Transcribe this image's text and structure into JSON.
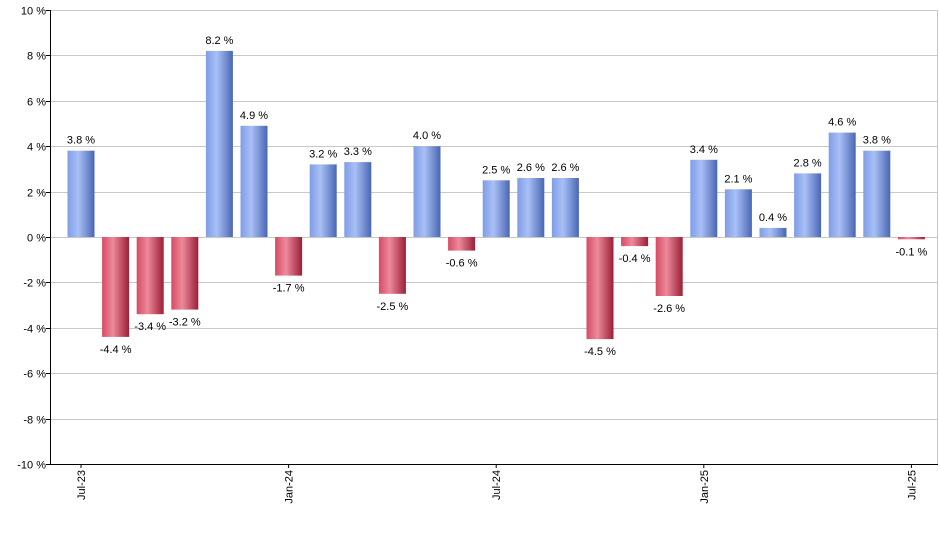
{
  "chart_data": {
    "type": "bar",
    "categories": [
      "2023-07",
      "2023-08",
      "2023-09",
      "2023-10",
      "2023-11",
      "2023-12",
      "2024-01",
      "2024-02",
      "2024-03",
      "2024-04",
      "2024-05",
      "2024-06",
      "2024-07",
      "2024-08",
      "2024-09",
      "2024-10",
      "2024-11",
      "2024-12",
      "2025-01",
      "2025-02",
      "2025-03",
      "2025-04",
      "2025-05",
      "2025-06",
      "2025-07"
    ],
    "values": [
      3.8,
      -4.4,
      -3.4,
      -3.2,
      8.2,
      4.9,
      -1.7,
      3.2,
      3.3,
      -2.5,
      4.0,
      -0.6,
      2.5,
      2.6,
      2.6,
      -4.5,
      -0.4,
      -2.6,
      3.4,
      2.1,
      0.4,
      2.8,
      4.6,
      3.8,
      -0.1
    ],
    "data_labels": [
      "3.8 %",
      "-4.4 %",
      "-3.4 %",
      "-3.2 %",
      "8.2 %",
      "4.9 %",
      "-1.7 %",
      "3.2 %",
      "3.3 %",
      "-2.5 %",
      "4.0 %",
      "-0.6 %",
      "2.5 %",
      "2.6 %",
      "2.6 %",
      "-4.5 %",
      "-0.4 %",
      "-2.6 %",
      "3.4 %",
      "2.1 %",
      "0.4 %",
      "2.8 %",
      "4.6 %",
      "3.8 %",
      "-0.1 %"
    ],
    "x_tick_labels": [
      {
        "label": "Jul-23",
        "index": 0
      },
      {
        "label": "Jan-24",
        "index": 6
      },
      {
        "label": "Jul-24",
        "index": 12
      },
      {
        "label": "Jan-25",
        "index": 18
      },
      {
        "label": "Jul-25",
        "index": 24
      }
    ],
    "y_ticks": [
      10,
      8,
      6,
      4,
      2,
      0,
      -2,
      -4,
      -6,
      -8,
      -10
    ],
    "y_tick_labels": [
      "10 %",
      "8 %",
      "6 %",
      "4 %",
      "2 %",
      "0 %",
      "-2 %",
      "-4 %",
      "-6 %",
      "-8 %",
      "-10 %"
    ],
    "ylim": [
      -10,
      10
    ],
    "grid": true,
    "legend": "none",
    "colors": {
      "positive": "#7f9de8",
      "positive_dark": "#4a66b4",
      "negative": "#d84a63",
      "negative_dark": "#9b1f36",
      "grid": "#c8c8c8",
      "axis": "#000000"
    }
  }
}
